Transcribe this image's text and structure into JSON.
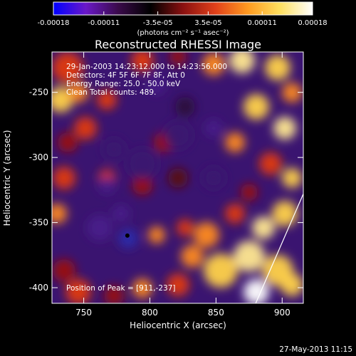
{
  "colorbar": {
    "tick_labels": [
      "-0.00018",
      "-0.00011",
      "-3.5e-05",
      "3.5e-05",
      "0.00011",
      "0.00018"
    ],
    "tick_values": [
      -0.00018,
      -0.00011,
      -3.5e-05,
      3.5e-05,
      0.00011,
      0.00018
    ],
    "range": [
      -0.00018,
      0.00018
    ],
    "units_label": "(photons cm⁻² s⁻¹ asec⁻²)",
    "colormap": [
      "#0000ff",
      "#6a18c8",
      "#3a0a4a",
      "#000000",
      "#8a1010",
      "#e0401a",
      "#ff9a20",
      "#ffe060",
      "#ffffff"
    ]
  },
  "chart_data": {
    "type": "heatmap",
    "title": "Reconstructed RHESSI Image",
    "xlabel": "Heliocentric X (arcsec)",
    "ylabel": "Heliocentric Y (arcsec)",
    "xlim": [
      726,
      916
    ],
    "ylim": [
      -412,
      -219
    ],
    "x_ticks": [
      "750",
      "800",
      "850",
      "900"
    ],
    "x_tick_values": [
      750,
      800,
      850,
      900
    ],
    "y_ticks": [
      "-250",
      "-300",
      "-350",
      "-400"
    ],
    "y_tick_values": [
      -250,
      -300,
      -350,
      -400
    ],
    "annotations": {
      "time_range": "29-Jan-2003 14:23:12.000 to 14:23:56.000",
      "detectors": "Detectors: 4F 5F 6F 7F 8F, Att 0",
      "energy": "Energy Range: 25.0 - 50.0 keV",
      "method": "Clean     Total counts: 489.",
      "peak": "Position of Peak = [911,-237]"
    },
    "peak": {
      "x": 911,
      "y": -237
    },
    "limb_line": [
      [
        880,
        -412
      ],
      [
        916,
        -328
      ]
    ],
    "marker": {
      "x": 783,
      "y": -360
    }
  },
  "footer": {
    "timestamp": "27-May-2013 11:15"
  }
}
